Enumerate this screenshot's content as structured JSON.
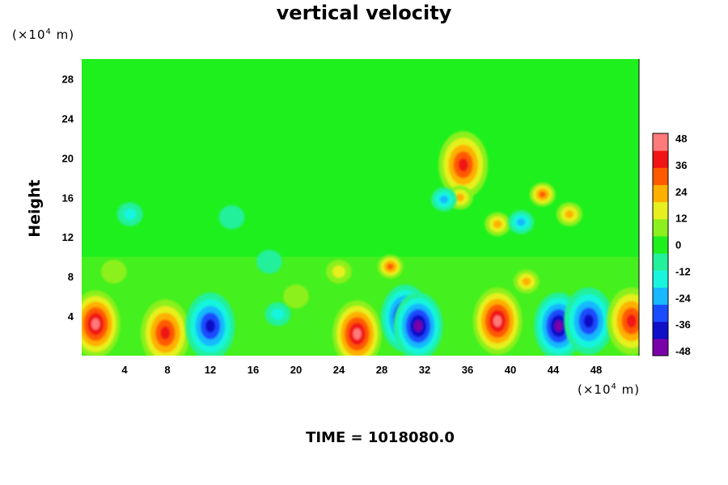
{
  "chart_data": {
    "type": "heatmap",
    "title": "vertical velocity",
    "ylabel": "Height",
    "xunit_prefix": "(×10",
    "xunit_exp": "4",
    "xunit_suffix": " m)",
    "yunit_prefix": "(×10",
    "yunit_exp": "4",
    "yunit_suffix": " m)",
    "footer": "TIME = 1018080.0",
    "xlim": [
      0,
      52
    ],
    "ylim": [
      0,
      30
    ],
    "xticks": [
      4,
      8,
      12,
      16,
      20,
      24,
      28,
      32,
      36,
      40,
      44,
      48
    ],
    "yticks": [
      4,
      8,
      12,
      16,
      20,
      24,
      28
    ],
    "colorbar": {
      "range": [
        -48,
        48
      ],
      "ticks": [
        48,
        36,
        24,
        12,
        0,
        -12,
        -24,
        -36,
        -48
      ],
      "colors": [
        "#7a00a8",
        "#1010c8",
        "#1a4cff",
        "#19b8ff",
        "#19f5dd",
        "#23f09a",
        "#1ef01e",
        "#8cf01e",
        "#e6f01e",
        "#ffb000",
        "#ff5a00",
        "#f01414",
        "#ff7a7a"
      ]
    },
    "features": [
      {
        "x": 1.3,
        "z": 3.2,
        "value": 48
      },
      {
        "x": 7.8,
        "z": 2.3,
        "value": 40
      },
      {
        "x": 12.0,
        "z": 3.0,
        "value": -38
      },
      {
        "x": 18.3,
        "z": 4.2,
        "value": -18
      },
      {
        "x": 25.7,
        "z": 2.2,
        "value": 44
      },
      {
        "x": 30.2,
        "z": 3.8,
        "value": -46
      },
      {
        "x": 31.4,
        "z": 3.0,
        "value": -48
      },
      {
        "x": 38.8,
        "z": 3.5,
        "value": 48
      },
      {
        "x": 44.5,
        "z": 3.0,
        "value": -48
      },
      {
        "x": 47.3,
        "z": 3.5,
        "value": -40
      },
      {
        "x": 51.3,
        "z": 3.5,
        "value": 40
      },
      {
        "x": 35.6,
        "z": 19.3,
        "value": 38
      },
      {
        "x": 35.3,
        "z": 16.0,
        "value": 26
      },
      {
        "x": 38.8,
        "z": 13.3,
        "value": 26
      },
      {
        "x": 43.0,
        "z": 16.3,
        "value": 28
      },
      {
        "x": 45.5,
        "z": 14.3,
        "value": 24
      },
      {
        "x": 28.8,
        "z": 9.0,
        "value": 34
      },
      {
        "x": 41.5,
        "z": 7.5,
        "value": 20
      },
      {
        "x": 33.8,
        "z": 15.8,
        "value": -24
      },
      {
        "x": 41.0,
        "z": 13.5,
        "value": -26
      },
      {
        "x": 4.5,
        "z": 14.3,
        "value": -14
      },
      {
        "x": 14.0,
        "z": 14.0,
        "value": -12
      },
      {
        "x": 24.0,
        "z": 8.5,
        "value": 16
      },
      {
        "x": 17.5,
        "z": 9.5,
        "value": -8
      },
      {
        "x": 20.0,
        "z": 6.0,
        "value": 10
      },
      {
        "x": 3.0,
        "z": 8.5,
        "value": 10
      }
    ]
  }
}
